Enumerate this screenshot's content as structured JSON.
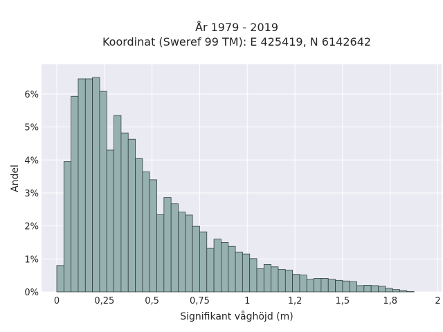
{
  "chart_data": {
    "type": "bar",
    "title_lines": [
      "År 1979 - 2019",
      "Koordinat (Sweref 99 TM): E 425419, N 6142642"
    ],
    "xlabel": "Signifikant våghöjd (m)",
    "ylabel": "Andel",
    "xlim": [
      -0.08,
      2.02
    ],
    "ylim": [
      0,
      0.069
    ],
    "x_ticks": [
      0,
      0.25,
      0.5,
      0.75,
      1,
      1.25,
      1.5,
      1.75,
      2
    ],
    "x_tick_labels": [
      "0",
      "0,25",
      "0,5",
      "0,75",
      "1",
      "1,2",
      "1,5",
      "1,8",
      "2"
    ],
    "y_ticks": [
      0,
      0.01,
      0.02,
      0.03,
      0.04,
      0.05,
      0.06
    ],
    "y_tick_labels": [
      "0%",
      "1%",
      "2%",
      "3%",
      "4%",
      "5%",
      "6%"
    ],
    "bin_start": 0,
    "bin_width": 0.0375,
    "values": [
      0.008,
      0.0395,
      0.0593,
      0.0646,
      0.0646,
      0.065,
      0.0608,
      0.043,
      0.0535,
      0.0482,
      0.0463,
      0.0404,
      0.0364,
      0.034,
      0.0234,
      0.0286,
      0.0267,
      0.0242,
      0.0233,
      0.0199,
      0.0182,
      0.0132,
      0.016,
      0.015,
      0.0138,
      0.0121,
      0.0115,
      0.0101,
      0.007,
      0.0083,
      0.0076,
      0.0068,
      0.0066,
      0.0053,
      0.0051,
      0.0038,
      0.0041,
      0.0041,
      0.0038,
      0.0035,
      0.0033,
      0.0031,
      0.0019,
      0.002,
      0.0019,
      0.0017,
      0.0011,
      0.0007,
      0.0004,
      0.0001
    ],
    "grid": true,
    "colors": {
      "bar_fill": "#97b1b1",
      "bar_edge": "#2f3f3f",
      "plot_bg": "#eaeaf2",
      "grid": "#ffffff"
    }
  }
}
